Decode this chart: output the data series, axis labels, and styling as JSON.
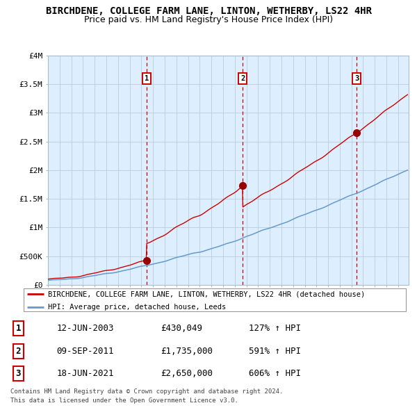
{
  "title": "BIRCHDENE, COLLEGE FARM LANE, LINTON, WETHERBY, LS22 4HR",
  "subtitle": "Price paid vs. HM Land Registry's House Price Index (HPI)",
  "background_color": "#ffffff",
  "plot_bg_color": "#ddeeff",
  "ylim": [
    0,
    4000000
  ],
  "yticks": [
    0,
    500000,
    1000000,
    1500000,
    2000000,
    2500000,
    3000000,
    3500000,
    4000000
  ],
  "ytick_labels": [
    "£0",
    "£500K",
    "£1M",
    "£1.5M",
    "£2M",
    "£2.5M",
    "£3M",
    "£3.5M",
    "£4M"
  ],
  "xlim_start": 1995.0,
  "xlim_end": 2025.9,
  "sale1_x": 2003.44,
  "sale1_y": 430049,
  "sale2_x": 2011.69,
  "sale2_y": 1735000,
  "sale3_x": 2021.46,
  "sale3_y": 2650000,
  "sale1_label": "1",
  "sale2_label": "2",
  "sale3_label": "3",
  "sale1_date": "12-JUN-2003",
  "sale2_date": "09-SEP-2011",
  "sale3_date": "18-JUN-2021",
  "sale1_price": "£430,049",
  "sale2_price": "£1,735,000",
  "sale3_price": "£2,650,000",
  "sale1_hpi": "127% ↑ HPI",
  "sale2_hpi": "591% ↑ HPI",
  "sale3_hpi": "606% ↑ HPI",
  "legend_label1": "BIRCHDENE, COLLEGE FARM LANE, LINTON, WETHERBY, LS22 4HR (detached house)",
  "legend_label2": "HPI: Average price, detached house, Leeds",
  "footer1": "Contains HM Land Registry data © Crown copyright and database right 2024.",
  "footer2": "This data is licensed under the Open Government Licence v3.0.",
  "red_line_color": "#cc0000",
  "blue_line_color": "#6699cc",
  "sale_dot_color": "#990000",
  "grid_color": "#bbccdd",
  "dashed_line_color": "#cc0000"
}
